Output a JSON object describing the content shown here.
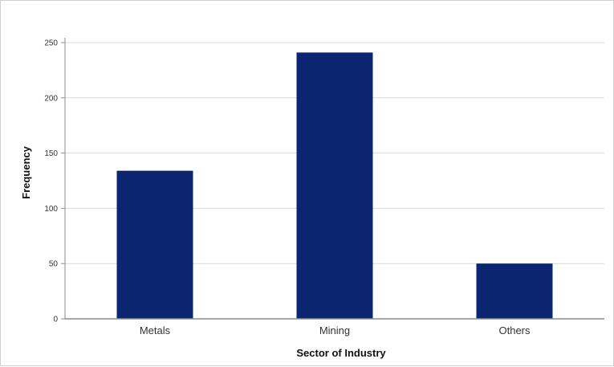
{
  "chart_data": {
    "type": "bar",
    "categories": [
      "Metals",
      "Mining",
      "Others"
    ],
    "values": [
      134,
      241,
      50
    ],
    "title": "",
    "xlabel": "Sector of Industry",
    "ylabel": "Frequency",
    "ylim": [
      0,
      250
    ],
    "yticks": [
      0,
      50,
      100,
      150,
      200,
      250
    ],
    "grid": true,
    "bar_color": "#0b2570",
    "grid_color": "#d9d9d9",
    "axis_color": "#8c8c8c"
  }
}
